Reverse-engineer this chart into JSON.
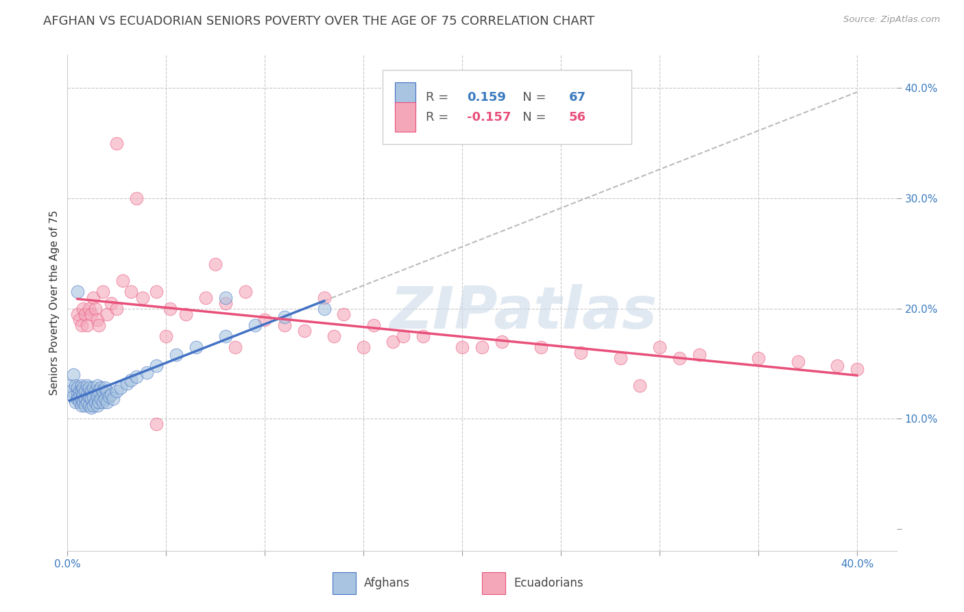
{
  "title": "AFGHAN VS ECUADORIAN SENIORS POVERTY OVER THE AGE OF 75 CORRELATION CHART",
  "source": "Source: ZipAtlas.com",
  "ylabel": "Seniors Poverty Over the Age of 75",
  "xlim": [
    0.0,
    0.42
  ],
  "ylim": [
    -0.02,
    0.43
  ],
  "afghan_color": "#a8c4e0",
  "ecuadorian_color": "#f4a7b9",
  "afghan_R": 0.159,
  "afghan_N": 67,
  "ecuadorian_R": -0.157,
  "ecuadorian_N": 56,
  "trend_afghan_color": "#4472c4",
  "trend_ecuadorian_color": "#e8507a",
  "watermark": "ZIPatlas",
  "background_color": "#ffffff",
  "grid_color": "#c8c8c8",
  "title_fontsize": 13,
  "axis_label_fontsize": 11,
  "tick_fontsize": 11,
  "afghan_x": [
    0.001,
    0.002,
    0.003,
    0.003,
    0.004,
    0.004,
    0.005,
    0.005,
    0.005,
    0.006,
    0.006,
    0.006,
    0.007,
    0.007,
    0.007,
    0.007,
    0.008,
    0.008,
    0.008,
    0.009,
    0.009,
    0.009,
    0.01,
    0.01,
    0.01,
    0.011,
    0.011,
    0.011,
    0.012,
    0.012,
    0.012,
    0.013,
    0.013,
    0.013,
    0.014,
    0.014,
    0.015,
    0.015,
    0.015,
    0.016,
    0.016,
    0.017,
    0.017,
    0.018,
    0.018,
    0.019,
    0.019,
    0.02,
    0.02,
    0.021,
    0.022,
    0.023,
    0.025,
    0.027,
    0.03,
    0.032,
    0.035,
    0.04,
    0.045,
    0.055,
    0.065,
    0.08,
    0.095,
    0.11,
    0.13,
    0.005,
    0.08
  ],
  "afghan_y": [
    0.13,
    0.125,
    0.14,
    0.12,
    0.13,
    0.115,
    0.128,
    0.122,
    0.118,
    0.125,
    0.12,
    0.115,
    0.13,
    0.125,
    0.118,
    0.112,
    0.128,
    0.122,
    0.115,
    0.125,
    0.118,
    0.112,
    0.13,
    0.122,
    0.115,
    0.128,
    0.12,
    0.112,
    0.125,
    0.118,
    0.11,
    0.128,
    0.12,
    0.112,
    0.125,
    0.115,
    0.13,
    0.12,
    0.112,
    0.125,
    0.115,
    0.128,
    0.118,
    0.125,
    0.115,
    0.128,
    0.118,
    0.125,
    0.115,
    0.12,
    0.122,
    0.118,
    0.125,
    0.128,
    0.132,
    0.135,
    0.138,
    0.142,
    0.148,
    0.158,
    0.165,
    0.175,
    0.185,
    0.192,
    0.2,
    0.215,
    0.21
  ],
  "ecuadorian_x": [
    0.005,
    0.006,
    0.007,
    0.008,
    0.009,
    0.01,
    0.011,
    0.012,
    0.013,
    0.014,
    0.015,
    0.016,
    0.018,
    0.02,
    0.022,
    0.025,
    0.028,
    0.032,
    0.038,
    0.045,
    0.052,
    0.06,
    0.07,
    0.08,
    0.09,
    0.1,
    0.11,
    0.12,
    0.135,
    0.15,
    0.165,
    0.18,
    0.2,
    0.22,
    0.24,
    0.26,
    0.28,
    0.3,
    0.32,
    0.35,
    0.37,
    0.39,
    0.05,
    0.14,
    0.17,
    0.21,
    0.075,
    0.13,
    0.025,
    0.035,
    0.4,
    0.31,
    0.085,
    0.155,
    0.29,
    0.045
  ],
  "ecuadorian_y": [
    0.195,
    0.19,
    0.185,
    0.2,
    0.195,
    0.185,
    0.2,
    0.195,
    0.21,
    0.2,
    0.19,
    0.185,
    0.215,
    0.195,
    0.205,
    0.2,
    0.225,
    0.215,
    0.21,
    0.215,
    0.2,
    0.195,
    0.21,
    0.205,
    0.215,
    0.19,
    0.185,
    0.18,
    0.175,
    0.165,
    0.17,
    0.175,
    0.165,
    0.17,
    0.165,
    0.16,
    0.155,
    0.165,
    0.158,
    0.155,
    0.152,
    0.148,
    0.175,
    0.195,
    0.175,
    0.165,
    0.24,
    0.21,
    0.35,
    0.3,
    0.145,
    0.155,
    0.165,
    0.185,
    0.13,
    0.095
  ]
}
